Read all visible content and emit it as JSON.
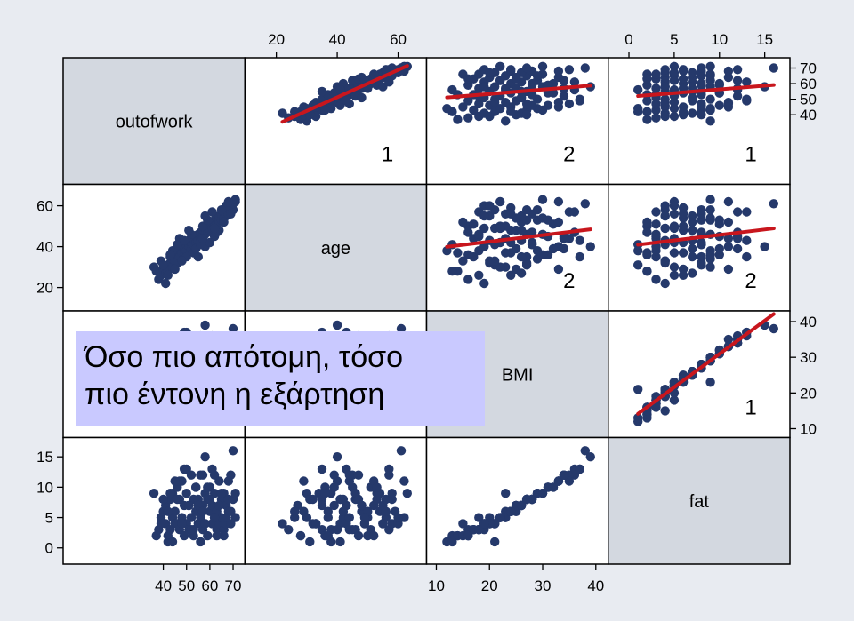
{
  "chart_data": {
    "type": "scatter",
    "variables": [
      "outofwork",
      "age",
      "BMI",
      "fat"
    ],
    "ranges": {
      "outofwork": [
        0,
        72
      ],
      "age": [
        12,
        67
      ],
      "BMI": [
        9.5,
        41
      ],
      "fat": [
        -1.5,
        17
      ]
    },
    "axes": {
      "top": {
        "age": [
          "20",
          "40",
          "60"
        ],
        "fat": [
          "0",
          "5",
          "10",
          "15"
        ]
      },
      "right": {
        "outofwork": [
          "40",
          "50",
          "60",
          "70"
        ],
        "BMI": [
          "10",
          "20",
          "30",
          "40"
        ]
      },
      "left": {
        "age": [
          "20",
          "40",
          "60"
        ],
        "fat": [
          "0",
          "5",
          "10",
          "15"
        ]
      },
      "bottom": {
        "outofwork": [
          "40",
          "50",
          "60",
          "70"
        ],
        "BMI": [
          "10",
          "20",
          "30",
          "40"
        ]
      }
    },
    "pair_labels": [
      {
        "row": "outofwork",
        "col": "age",
        "text": "1"
      },
      {
        "row": "outofwork",
        "col": "BMI",
        "text": "2"
      },
      {
        "row": "outofwork",
        "col": "fat",
        "text": "1"
      },
      {
        "row": "age",
        "col": "BMI",
        "text": "2"
      },
      {
        "row": "age",
        "col": "fat",
        "text": "2"
      },
      {
        "row": "BMI",
        "col": "fat",
        "text": "1"
      }
    ],
    "point_color": "#25396b",
    "line_color": "#c8161d",
    "diag_fill": "#d3d8e0",
    "background": "#e8ebf1",
    "points": [
      [
        36,
        30,
        23,
        9
      ],
      [
        37,
        28,
        14,
        2
      ],
      [
        38,
        24,
        16,
        3
      ],
      [
        39,
        26,
        18,
        5
      ],
      [
        40,
        29,
        25,
        6
      ],
      [
        41,
        22,
        19,
        4
      ],
      [
        41,
        27,
        26,
        7
      ],
      [
        42,
        31,
        21,
        1
      ],
      [
        42,
        28,
        13,
        2
      ],
      [
        43,
        32,
        27,
        8
      ],
      [
        43,
        35,
        17,
        3
      ],
      [
        44,
        30,
        22,
        5
      ],
      [
        44,
        34,
        29,
        9
      ],
      [
        45,
        33,
        15,
        4
      ],
      [
        45,
        37,
        24,
        6
      ],
      [
        46,
        36,
        31,
        10
      ],
      [
        46,
        32,
        20,
        4
      ],
      [
        47,
        38,
        18,
        3
      ],
      [
        47,
        35,
        27,
        8
      ],
      [
        48,
        37,
        23,
        5
      ],
      [
        48,
        40,
        33,
        11
      ],
      [
        49,
        36,
        16,
        2
      ],
      [
        49,
        39,
        25,
        7
      ],
      [
        50,
        41,
        21,
        4
      ],
      [
        50,
        38,
        29,
        9
      ],
      [
        51,
        40,
        19,
        3
      ],
      [
        51,
        43,
        26,
        7
      ],
      [
        52,
        39,
        34,
        12
      ],
      [
        52,
        42,
        22,
        5
      ],
      [
        53,
        41,
        28,
        8
      ],
      [
        53,
        44,
        17,
        3
      ],
      [
        54,
        42,
        24,
        6
      ],
      [
        54,
        45,
        31,
        10
      ],
      [
        55,
        43,
        20,
        4
      ],
      [
        55,
        46,
        27,
        8
      ],
      [
        56,
        44,
        23,
        5
      ],
      [
        56,
        47,
        36,
        12
      ],
      [
        57,
        45,
        18,
        3
      ],
      [
        57,
        48,
        25,
        7
      ],
      [
        58,
        46,
        30,
        9
      ],
      [
        58,
        49,
        21,
        4
      ],
      [
        59,
        47,
        28,
        8
      ],
      [
        59,
        50,
        16,
        2
      ],
      [
        60,
        48,
        24,
        6
      ],
      [
        60,
        51,
        32,
        10
      ],
      [
        61,
        49,
        19,
        4
      ],
      [
        61,
        52,
        26,
        7
      ],
      [
        62,
        50,
        22,
        5
      ],
      [
        62,
        53,
        29,
        9
      ],
      [
        63,
        51,
        17,
        3
      ],
      [
        63,
        54,
        25,
        6
      ],
      [
        64,
        52,
        33,
        11
      ],
      [
        64,
        55,
        20,
        4
      ],
      [
        65,
        53,
        27,
        8
      ],
      [
        65,
        56,
        23,
        5
      ],
      [
        66,
        54,
        30,
        9
      ],
      [
        66,
        57,
        18,
        3
      ],
      [
        67,
        55,
        26,
        7
      ],
      [
        67,
        58,
        21,
        4
      ],
      [
        68,
        56,
        28,
        8
      ],
      [
        68,
        59,
        24,
        6
      ],
      [
        69,
        57,
        35,
        12
      ],
      [
        69,
        60,
        19,
        4
      ],
      [
        70,
        58,
        27,
        8
      ],
      [
        70,
        61,
        38,
        16
      ],
      [
        71,
        62,
        22,
        5
      ],
      [
        71,
        63,
        30,
        9
      ],
      [
        50,
        35,
        37,
        13
      ],
      [
        58,
        40,
        39,
        15
      ],
      [
        44,
        38,
        12,
        1
      ],
      [
        47,
        44,
        35,
        11
      ],
      [
        53,
        37,
        14,
        2
      ],
      [
        62,
        45,
        34,
        12
      ],
      [
        66,
        52,
        15,
        2
      ],
      [
        45,
        29,
        33,
        11
      ],
      [
        55,
        35,
        26,
        7
      ],
      [
        60,
        42,
        28,
        8
      ],
      [
        48,
        33,
        21,
        4
      ],
      [
        57,
        50,
        23,
        6
      ],
      [
        64,
        48,
        25,
        7
      ],
      [
        42,
        26,
        24,
        6
      ],
      [
        52,
        46,
        18,
        3
      ],
      [
        59,
        53,
        31,
        10
      ],
      [
        67,
        60,
        20,
        5
      ],
      [
        61,
        57,
        36,
        13
      ],
      [
        46,
        41,
        28,
        8
      ],
      [
        54,
        39,
        32,
        10
      ],
      [
        63,
        47,
        16,
        2
      ],
      [
        69,
        56,
        24,
        6
      ],
      [
        39,
        33,
        20,
        4
      ],
      [
        49,
        43,
        37,
        13
      ],
      [
        56,
        41,
        13,
        1
      ],
      [
        65,
        58,
        29,
        9
      ],
      [
        43,
        36,
        30,
        9
      ],
      [
        51,
        48,
        26,
        7
      ],
      [
        58,
        55,
        19,
        4
      ],
      [
        68,
        62,
        33,
        11
      ],
      [
        40,
        31,
        27,
        8
      ],
      [
        57,
        44,
        34,
        12
      ],
      [
        62,
        49,
        22,
        5
      ]
    ]
  },
  "callout": {
    "line1": "Όσο πιο απότομη, τόσο",
    "line2": "πιο έντονη η εξάρτηση"
  }
}
